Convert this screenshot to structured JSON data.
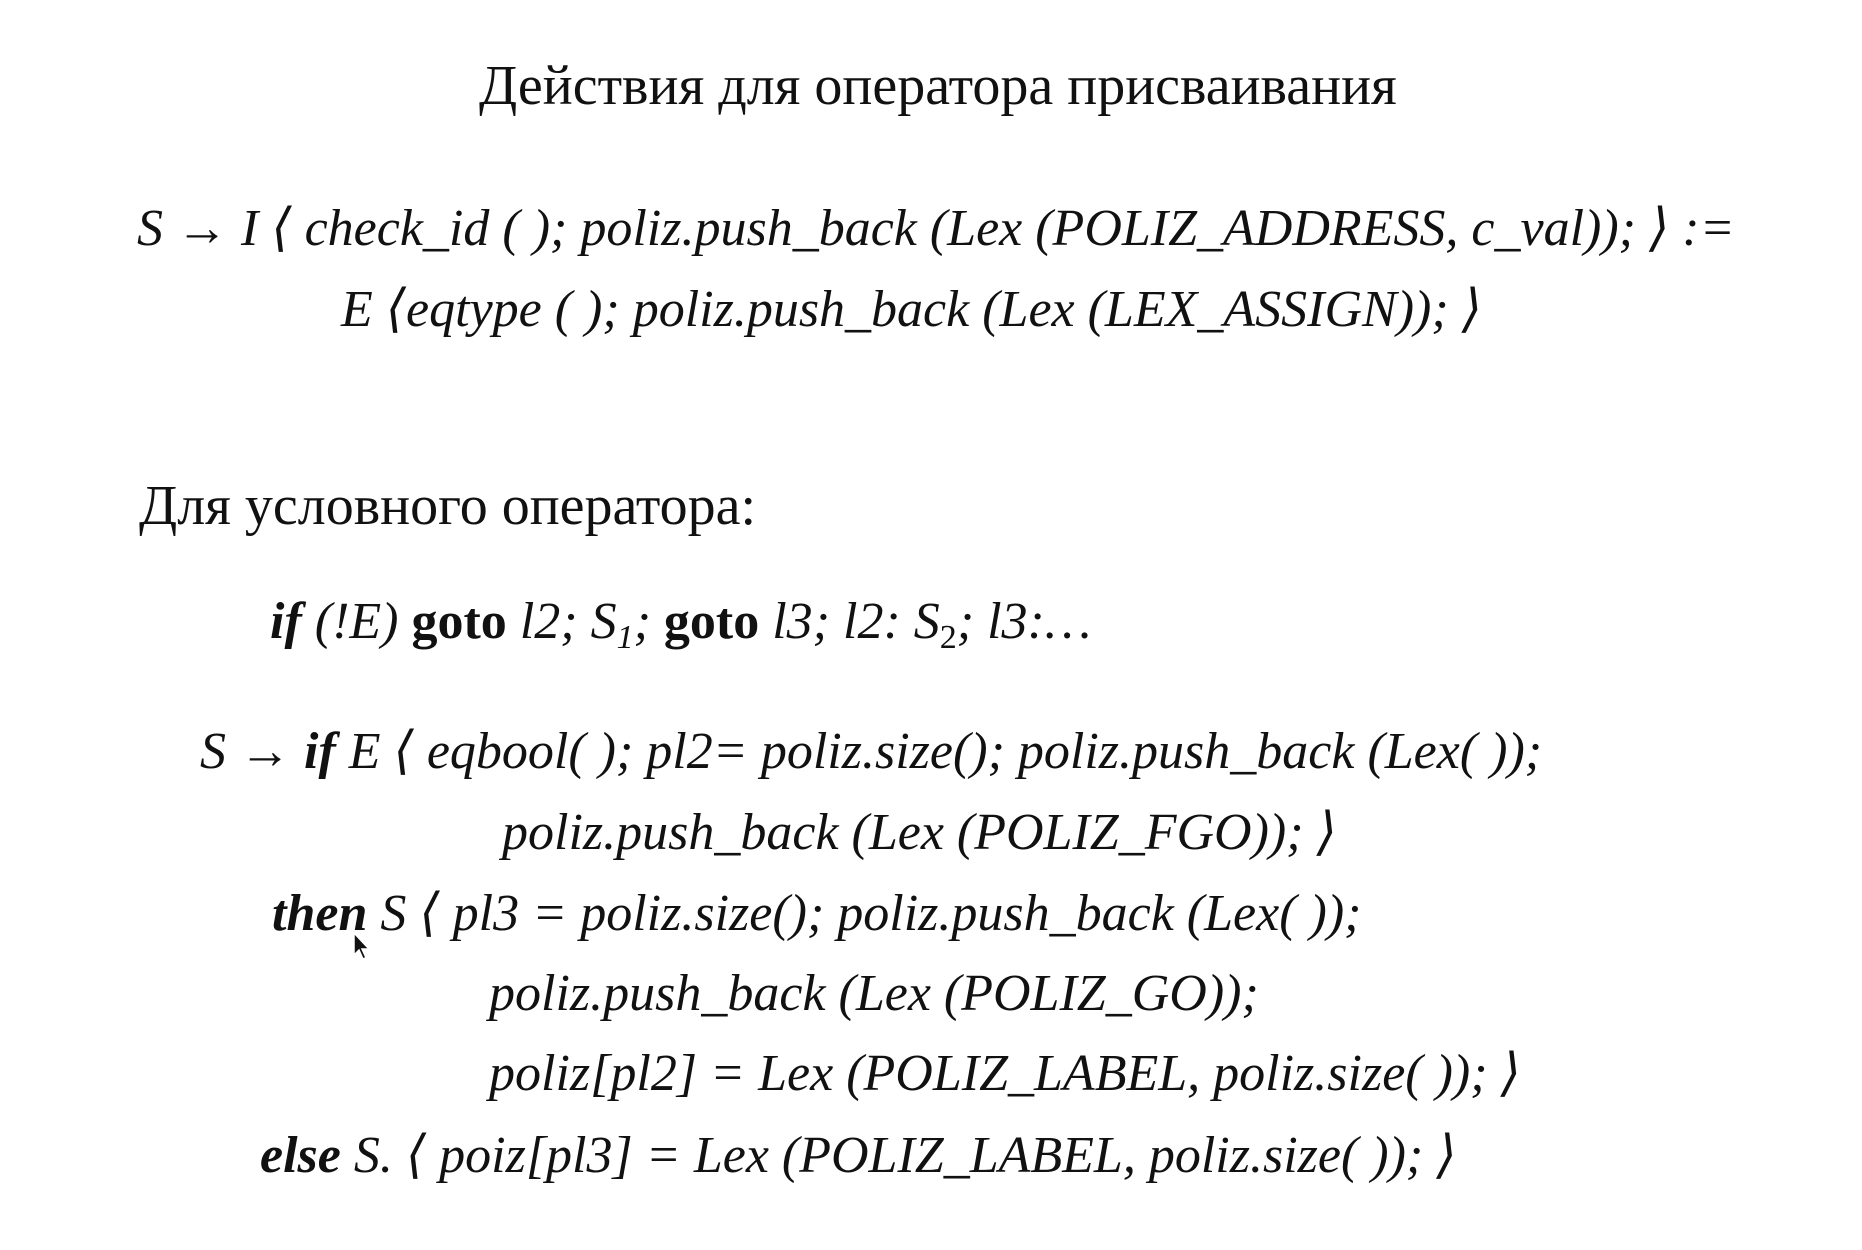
{
  "slide": {
    "title": "Действия для оператора присваивания",
    "assign_rule": {
      "line1": "S → I ⟨ check_id ( ); poliz.push_back (Lex (POLIZ_ADDRESS, c_val)); ⟩  :=",
      "line2": "E ⟨eqtype ( ); poliz.push_back (Lex (LEX_ASSIGN)); ⟩"
    },
    "conditional_heading": "Для условного оператора:",
    "goto_form": {
      "kw_if": "if",
      "cond": " (!E) ",
      "kw_goto1": "goto",
      "rest1": " l2; S",
      "sub1": "1",
      "sep1": "; ",
      "kw_goto2": "goto",
      "rest2": " l3; l2: S",
      "sub2": "2",
      "rest3": "; l3:…"
    },
    "if_rule": {
      "line1_prefix": "S → ",
      "line1_kw": "if",
      "line1_rest": "  E  ⟨ eqbool( );  pl2= poliz.size(); poliz.push_back (Lex( ));",
      "line2": "poliz.push_back (Lex (POLIZ_FGO)); ⟩",
      "line3_kw": "then",
      "line3_rest": " S  ⟨ pl3 = poliz.size(); poliz.push_back (Lex( ));",
      "line4": "poliz.push_back (Lex (POLIZ_GO));",
      "line5": "poliz[pl2] = Lex (POLIZ_LABEL, poliz.size( )); ⟩",
      "line6_kw": "else",
      "line6_rest": " S.  ⟨ poiz[pl3] = Lex (POLIZ_LABEL, poliz.size( )); ⟩"
    }
  }
}
